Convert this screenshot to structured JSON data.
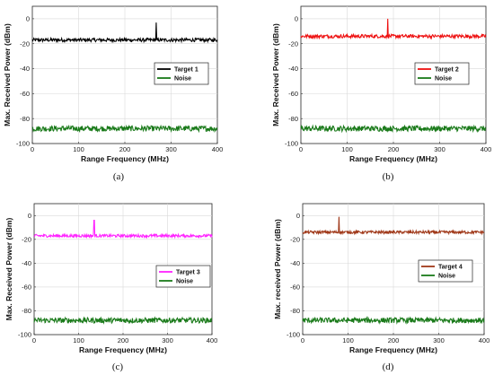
{
  "chart_data": [
    {
      "type": "line",
      "panel_label": "(a)",
      "xlabel": "Range Frequency (MHz)",
      "ylabel": "Max. Received Power (dBm)",
      "xlim": [
        0,
        400
      ],
      "ylim": [
        -100,
        10
      ],
      "xticks": [
        0,
        100,
        200,
        300,
        400
      ],
      "yticks": [
        0,
        -20,
        -40,
        -60,
        -80,
        -100
      ],
      "grid": true,
      "legend_position": "right",
      "series": [
        {
          "name": "Target 1",
          "color": "#000000",
          "baseline": -17,
          "noise_amp": 1.4,
          "peak": {
            "x": 268,
            "y": -3
          }
        },
        {
          "name": "Noise",
          "color": "#1a7a1a",
          "baseline": -88,
          "noise_amp": 2.2
        }
      ]
    },
    {
      "type": "line",
      "panel_label": "(b)",
      "xlabel": "Range Frequency (MHz)",
      "ylabel": "Max. Received Power (dBm)",
      "xlim": [
        0,
        400
      ],
      "ylim": [
        -100,
        10
      ],
      "xticks": [
        0,
        100,
        200,
        300,
        400
      ],
      "yticks": [
        0,
        -20,
        -40,
        -60,
        -80,
        -100
      ],
      "grid": true,
      "legend_position": "right",
      "series": [
        {
          "name": "Target 2",
          "color": "#ee1111",
          "baseline": -14,
          "noise_amp": 1.4,
          "peak": {
            "x": 188,
            "y": 0
          }
        },
        {
          "name": "Noise",
          "color": "#1a7a1a",
          "baseline": -88,
          "noise_amp": 2.2
        }
      ]
    },
    {
      "type": "line",
      "panel_label": "(c)",
      "xlabel": "Range Frequency (MHz)",
      "ylabel": "Max. Received Power (dBm)",
      "xlim": [
        0,
        400
      ],
      "ylim": [
        -100,
        10
      ],
      "xticks": [
        0,
        100,
        200,
        300,
        400
      ],
      "yticks": [
        0,
        -20,
        -40,
        -60,
        -80,
        -100
      ],
      "grid": true,
      "legend_position": "right",
      "series": [
        {
          "name": "Target 3",
          "color": "#ff22ff",
          "baseline": -17,
          "noise_amp": 1.2,
          "peak": {
            "x": 135,
            "y": -4
          }
        },
        {
          "name": "Noise",
          "color": "#1a7a1a",
          "baseline": -88,
          "noise_amp": 2.2
        }
      ]
    },
    {
      "type": "line",
      "panel_label": "(d)",
      "xlabel": "Range Frequency (MHz)",
      "ylabel": "Max. received Power (dBm)",
      "xlim": [
        0,
        400
      ],
      "ylim": [
        -100,
        10
      ],
      "xticks": [
        0,
        100,
        200,
        300,
        400
      ],
      "yticks": [
        0,
        -20,
        -40,
        -60,
        -80,
        -100
      ],
      "grid": true,
      "legend_position": "right",
      "series": [
        {
          "name": "Target 4",
          "color": "#a0391a",
          "baseline": -14,
          "noise_amp": 1.2,
          "peak": {
            "x": 80,
            "y": -1
          }
        },
        {
          "name": "Noise",
          "color": "#1a7a1a",
          "baseline": -88,
          "noise_amp": 2.2
        }
      ]
    }
  ]
}
